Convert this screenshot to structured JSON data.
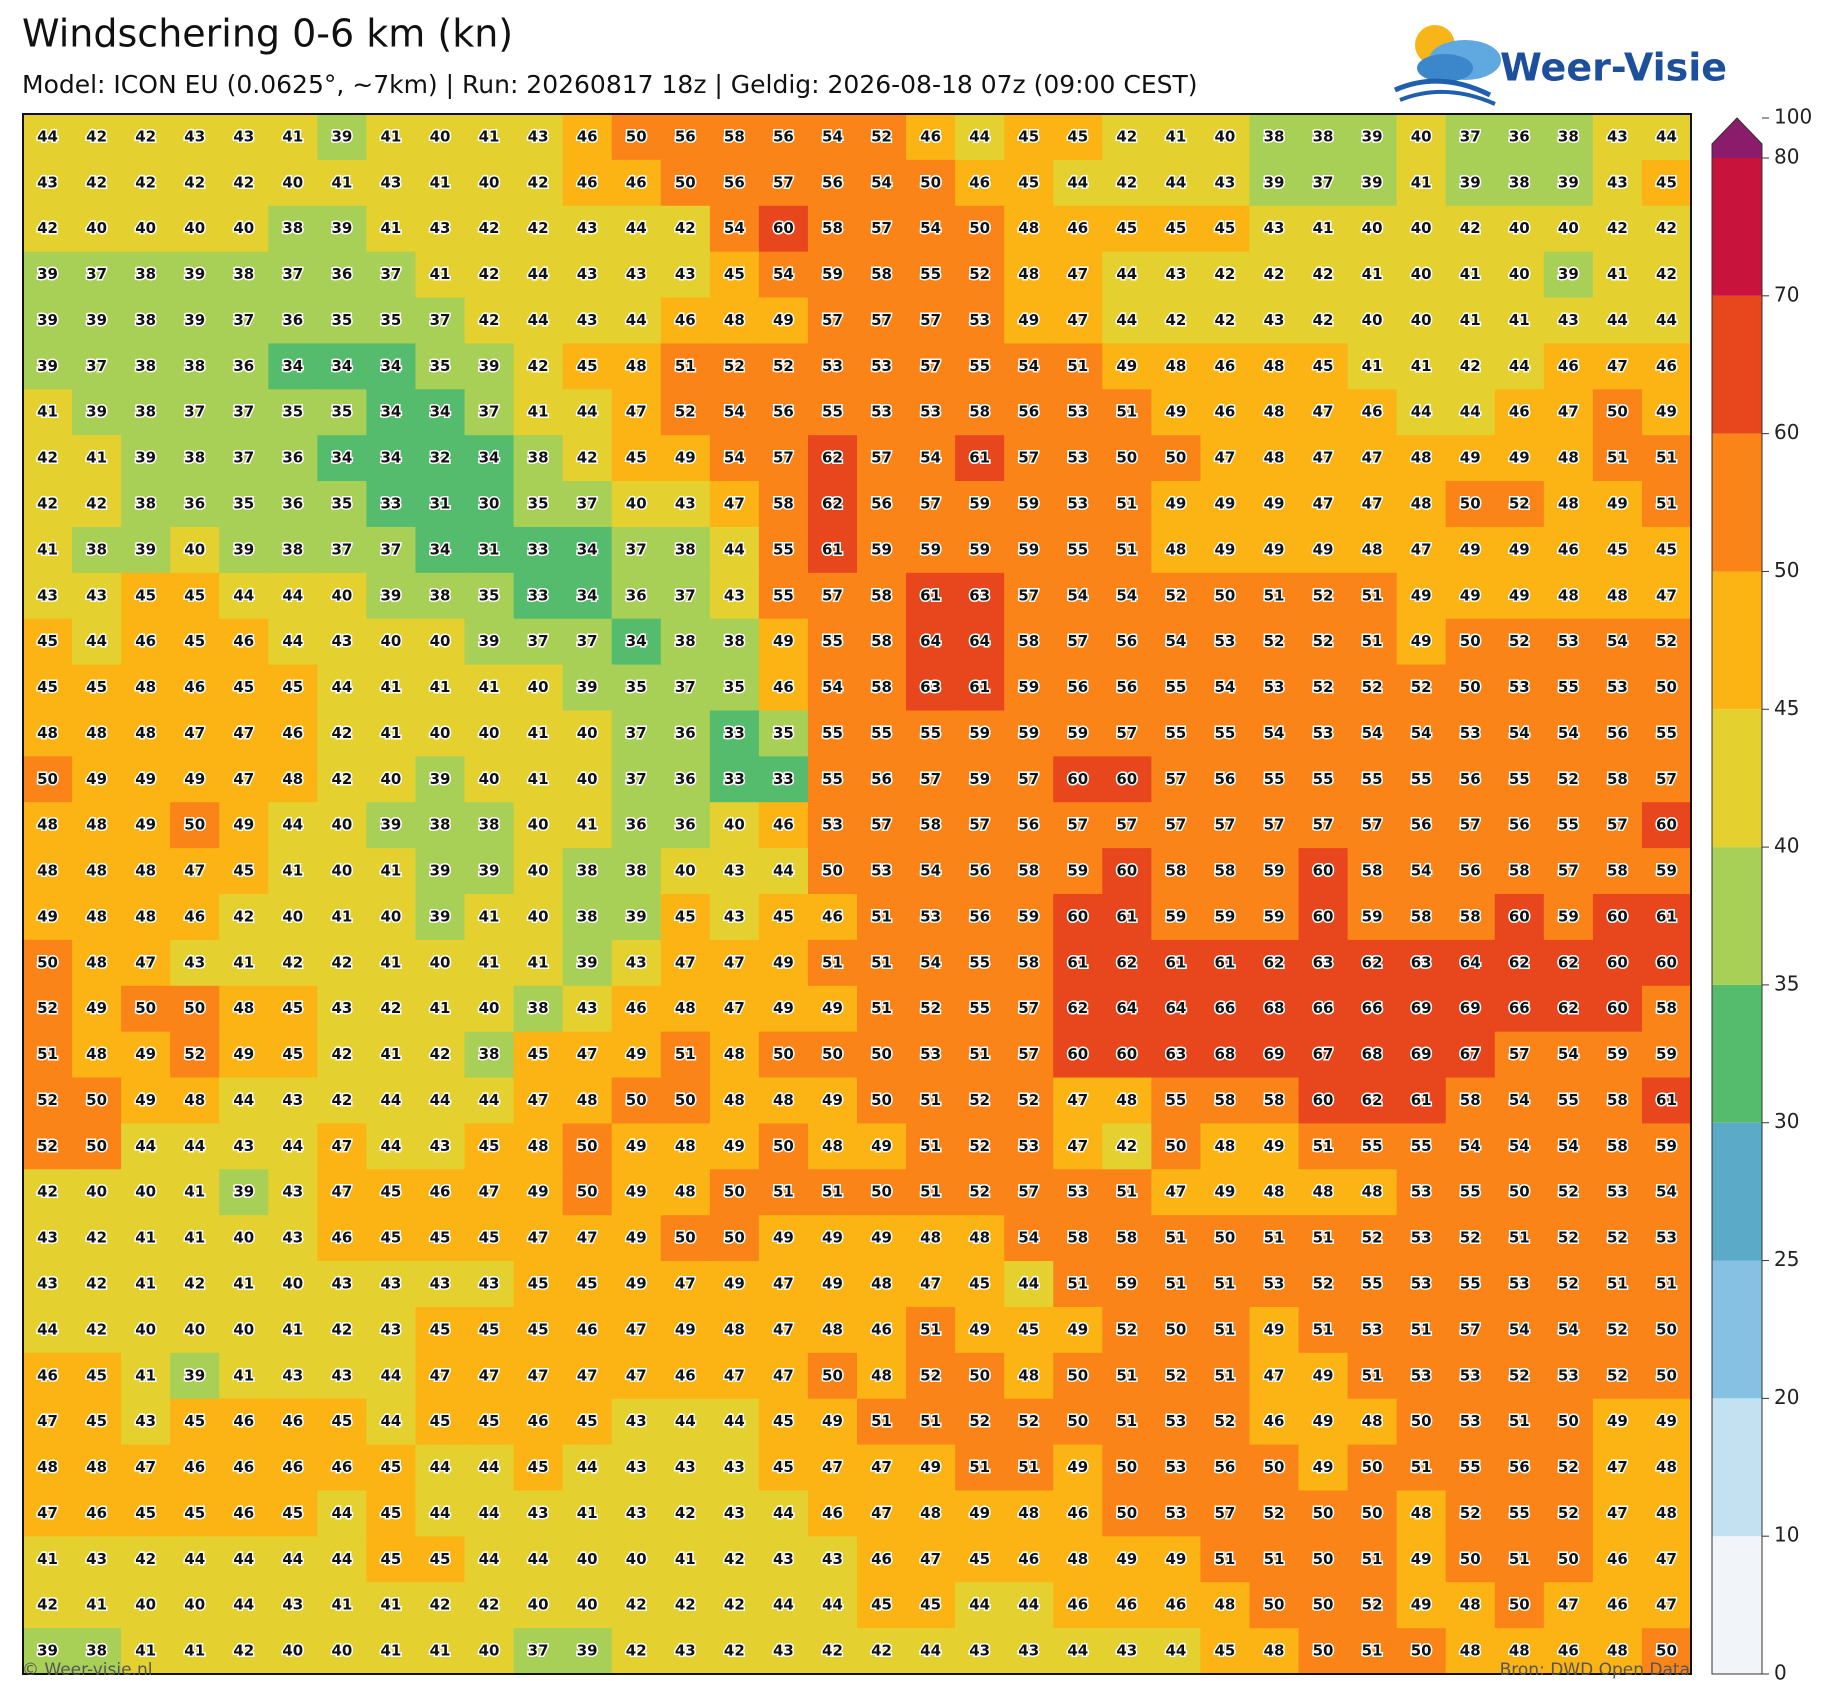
{
  "chart_data": {
    "type": "heatmap",
    "title": "Windschering 0-6 km (kn)",
    "subtitle": "Model: ICON EU (0.0625°, ~7km)  |  Run: 20260817 18z  |  Geldig: 2026-08-18 07z (09:00 CEST)",
    "logo": "Weer-Visie",
    "credit": "© Weer-visie.nl",
    "source": "Bron: DWD Open Data",
    "colorbar_ticks": [
      0,
      10,
      20,
      25,
      30,
      35,
      40,
      45,
      50,
      60,
      70,
      80,
      100
    ],
    "colorbar_colors": [
      "#f1f5fa",
      "#c3e1f1",
      "#86c1e3",
      "#5aaac8",
      "#55bc6e",
      "#a8d056",
      "#e4d12f",
      "#fbb413",
      "#fb8419",
      "#e8461d",
      "#c8133c",
      "#8b1b6b"
    ],
    "values": [
      [
        44,
        42,
        42,
        43,
        43,
        41,
        39,
        41,
        40,
        41,
        43,
        46,
        50,
        56,
        58,
        56,
        54,
        52,
        46,
        44,
        45,
        45,
        42,
        41,
        40,
        38,
        38,
        39,
        40,
        37,
        36,
        38,
        43,
        44
      ],
      [
        43,
        42,
        42,
        42,
        42,
        40,
        41,
        43,
        41,
        40,
        42,
        46,
        46,
        50,
        56,
        57,
        56,
        54,
        50,
        46,
        45,
        44,
        42,
        44,
        43,
        39,
        37,
        39,
        41,
        39,
        38,
        39,
        43,
        45
      ],
      [
        42,
        40,
        40,
        40,
        40,
        38,
        39,
        41,
        43,
        42,
        42,
        43,
        44,
        42,
        54,
        60,
        58,
        57,
        54,
        50,
        48,
        46,
        45,
        45,
        45,
        43,
        41,
        40,
        40,
        42,
        40,
        40,
        42,
        42
      ],
      [
        39,
        37,
        38,
        39,
        38,
        37,
        36,
        37,
        41,
        42,
        44,
        43,
        43,
        43,
        45,
        54,
        59,
        58,
        55,
        52,
        48,
        47,
        44,
        43,
        42,
        42,
        42,
        41,
        40,
        41,
        40,
        39,
        41,
        42
      ],
      [
        39,
        39,
        38,
        39,
        37,
        36,
        35,
        35,
        37,
        42,
        44,
        43,
        44,
        46,
        48,
        49,
        57,
        57,
        57,
        53,
        49,
        47,
        44,
        42,
        42,
        43,
        42,
        40,
        40,
        41,
        41,
        43,
        44,
        44
      ],
      [
        39,
        37,
        38,
        38,
        36,
        34,
        34,
        34,
        35,
        39,
        42,
        45,
        48,
        51,
        52,
        52,
        53,
        53,
        57,
        55,
        54,
        51,
        49,
        48,
        46,
        48,
        45,
        41,
        41,
        42,
        44,
        46,
        47,
        46
      ],
      [
        41,
        39,
        38,
        37,
        37,
        35,
        35,
        34,
        34,
        37,
        41,
        44,
        47,
        52,
        54,
        56,
        55,
        53,
        53,
        58,
        56,
        53,
        51,
        49,
        46,
        48,
        47,
        46,
        44,
        44,
        46,
        47,
        50,
        49
      ],
      [
        42,
        41,
        39,
        38,
        37,
        36,
        34,
        34,
        32,
        34,
        38,
        42,
        45,
        49,
        54,
        57,
        62,
        57,
        54,
        61,
        57,
        53,
        50,
        50,
        47,
        48,
        47,
        47,
        48,
        49,
        49,
        48,
        51,
        51
      ],
      [
        42,
        42,
        38,
        36,
        35,
        36,
        35,
        33,
        31,
        30,
        35,
        37,
        40,
        43,
        47,
        58,
        62,
        56,
        57,
        59,
        59,
        53,
        51,
        49,
        49,
        49,
        47,
        47,
        48,
        50,
        52,
        48,
        49,
        51
      ],
      [
        41,
        38,
        39,
        40,
        39,
        38,
        37,
        37,
        34,
        31,
        33,
        34,
        37,
        38,
        44,
        55,
        61,
        59,
        59,
        59,
        59,
        55,
        51,
        48,
        49,
        49,
        49,
        48,
        47,
        49,
        49,
        46,
        45,
        45
      ],
      [
        43,
        43,
        45,
        45,
        44,
        44,
        40,
        39,
        38,
        35,
        33,
        34,
        36,
        37,
        43,
        55,
        57,
        58,
        61,
        63,
        57,
        54,
        54,
        52,
        50,
        51,
        52,
        51,
        49,
        49,
        49,
        48,
        48,
        47
      ],
      [
        45,
        44,
        46,
        45,
        46,
        44,
        43,
        40,
        40,
        39,
        37,
        37,
        34,
        38,
        38,
        49,
        55,
        58,
        64,
        64,
        58,
        57,
        56,
        54,
        53,
        52,
        52,
        51,
        49,
        50,
        52,
        53,
        54,
        52
      ],
      [
        45,
        45,
        48,
        46,
        45,
        45,
        44,
        41,
        41,
        41,
        40,
        39,
        35,
        37,
        35,
        46,
        54,
        58,
        63,
        61,
        59,
        56,
        56,
        55,
        54,
        53,
        52,
        52,
        52,
        50,
        53,
        55,
        53,
        50
      ],
      [
        48,
        48,
        48,
        47,
        47,
        46,
        42,
        41,
        40,
        40,
        41,
        40,
        37,
        36,
        33,
        35,
        55,
        55,
        55,
        59,
        59,
        59,
        57,
        55,
        55,
        54,
        53,
        54,
        54,
        53,
        54,
        54,
        56,
        55
      ],
      [
        50,
        49,
        49,
        49,
        47,
        48,
        42,
        40,
        39,
        40,
        41,
        40,
        37,
        36,
        33,
        33,
        55,
        56,
        57,
        59,
        57,
        60,
        60,
        57,
        56,
        55,
        55,
        55,
        55,
        56,
        55,
        52,
        58,
        57
      ],
      [
        48,
        48,
        49,
        50,
        49,
        44,
        40,
        39,
        38,
        38,
        40,
        41,
        36,
        36,
        40,
        46,
        53,
        57,
        58,
        57,
        56,
        57,
        57,
        57,
        57,
        57,
        57,
        57,
        56,
        57,
        56,
        55,
        57,
        60
      ],
      [
        48,
        48,
        48,
        47,
        45,
        41,
        40,
        41,
        39,
        39,
        40,
        38,
        38,
        40,
        43,
        44,
        50,
        53,
        54,
        56,
        58,
        59,
        60,
        58,
        58,
        59,
        60,
        58,
        54,
        56,
        58,
        57,
        58,
        59
      ],
      [
        49,
        48,
        48,
        46,
        42,
        40,
        41,
        40,
        39,
        41,
        40,
        38,
        39,
        45,
        43,
        45,
        46,
        51,
        53,
        56,
        59,
        60,
        61,
        59,
        59,
        59,
        60,
        59,
        58,
        58,
        60,
        59,
        60,
        61
      ],
      [
        50,
        48,
        47,
        43,
        41,
        42,
        42,
        41,
        40,
        41,
        41,
        39,
        43,
        47,
        47,
        49,
        51,
        51,
        54,
        55,
        58,
        61,
        62,
        61,
        61,
        62,
        63,
        62,
        63,
        64,
        62,
        62,
        60,
        60
      ],
      [
        52,
        49,
        50,
        50,
        48,
        45,
        43,
        42,
        41,
        40,
        38,
        43,
        46,
        48,
        47,
        49,
        49,
        51,
        52,
        55,
        57,
        62,
        64,
        64,
        66,
        68,
        66,
        66,
        69,
        69,
        66,
        62,
        60,
        58
      ],
      [
        51,
        48,
        49,
        52,
        49,
        45,
        42,
        41,
        42,
        38,
        45,
        47,
        49,
        51,
        48,
        50,
        50,
        50,
        53,
        51,
        57,
        60,
        60,
        63,
        68,
        69,
        67,
        68,
        69,
        67,
        57,
        54,
        59,
        59
      ],
      [
        52,
        50,
        49,
        48,
        44,
        43,
        42,
        44,
        44,
        44,
        47,
        48,
        50,
        50,
        48,
        48,
        49,
        50,
        51,
        52,
        52,
        47,
        48,
        55,
        58,
        58,
        60,
        62,
        61,
        58,
        54,
        55,
        58,
        61
      ],
      [
        52,
        50,
        44,
        44,
        43,
        44,
        47,
        44,
        43,
        45,
        48,
        50,
        49,
        48,
        49,
        50,
        48,
        49,
        51,
        52,
        53,
        47,
        42,
        50,
        48,
        49,
        51,
        55,
        55,
        54,
        54,
        54,
        58,
        59
      ],
      [
        42,
        40,
        40,
        41,
        39,
        43,
        47,
        45,
        46,
        47,
        49,
        50,
        49,
        48,
        50,
        51,
        51,
        50,
        51,
        52,
        57,
        53,
        51,
        47,
        49,
        48,
        48,
        48,
        53,
        55,
        50,
        52,
        53,
        54
      ],
      [
        43,
        42,
        41,
        41,
        40,
        43,
        46,
        45,
        45,
        45,
        47,
        47,
        49,
        50,
        50,
        49,
        49,
        49,
        48,
        48,
        54,
        58,
        58,
        51,
        50,
        51,
        51,
        52,
        53,
        52,
        51,
        52,
        52,
        53
      ],
      [
        43,
        42,
        41,
        42,
        41,
        40,
        43,
        43,
        43,
        43,
        45,
        45,
        49,
        47,
        49,
        47,
        49,
        48,
        47,
        45,
        44,
        51,
        59,
        51,
        51,
        53,
        52,
        55,
        53,
        55,
        53,
        52,
        51,
        51
      ],
      [
        44,
        42,
        40,
        40,
        40,
        41,
        42,
        43,
        45,
        45,
        45,
        46,
        47,
        49,
        48,
        47,
        48,
        46,
        51,
        49,
        45,
        49,
        52,
        50,
        51,
        49,
        51,
        53,
        51,
        57,
        54,
        54,
        52,
        50
      ],
      [
        46,
        45,
        41,
        39,
        41,
        43,
        43,
        44,
        47,
        47,
        47,
        47,
        47,
        46,
        47,
        47,
        50,
        48,
        52,
        50,
        48,
        50,
        51,
        52,
        51,
        47,
        49,
        51,
        53,
        53,
        52,
        53,
        52,
        50
      ],
      [
        47,
        45,
        43,
        45,
        46,
        46,
        45,
        44,
        45,
        45,
        46,
        45,
        43,
        44,
        44,
        45,
        49,
        51,
        51,
        52,
        52,
        50,
        51,
        53,
        52,
        46,
        49,
        48,
        50,
        53,
        51,
        50,
        49,
        49
      ],
      [
        48,
        48,
        47,
        46,
        46,
        46,
        46,
        45,
        44,
        44,
        45,
        44,
        43,
        43,
        43,
        45,
        47,
        47,
        49,
        51,
        51,
        49,
        50,
        53,
        56,
        50,
        49,
        50,
        51,
        55,
        56,
        52,
        47,
        48
      ],
      [
        47,
        46,
        45,
        45,
        46,
        45,
        44,
        45,
        44,
        44,
        43,
        41,
        43,
        42,
        43,
        44,
        46,
        47,
        48,
        49,
        48,
        46,
        50,
        53,
        57,
        52,
        50,
        50,
        48,
        52,
        55,
        52,
        47,
        48
      ],
      [
        41,
        43,
        42,
        44,
        44,
        44,
        44,
        45,
        45,
        44,
        44,
        40,
        40,
        41,
        42,
        43,
        43,
        46,
        47,
        45,
        46,
        48,
        49,
        49,
        51,
        51,
        50,
        51,
        49,
        50,
        51,
        50,
        46,
        47
      ],
      [
        42,
        41,
        40,
        40,
        44,
        43,
        41,
        41,
        42,
        42,
        40,
        40,
        42,
        42,
        42,
        44,
        44,
        45,
        45,
        44,
        44,
        46,
        46,
        46,
        48,
        50,
        50,
        52,
        49,
        48,
        50,
        47,
        46,
        47
      ],
      [
        39,
        38,
        41,
        41,
        42,
        40,
        40,
        41,
        41,
        40,
        37,
        39,
        42,
        43,
        42,
        43,
        42,
        42,
        44,
        43,
        43,
        44,
        43,
        44,
        45,
        48,
        50,
        51,
        50,
        48,
        48,
        46,
        48,
        50
      ]
    ]
  }
}
